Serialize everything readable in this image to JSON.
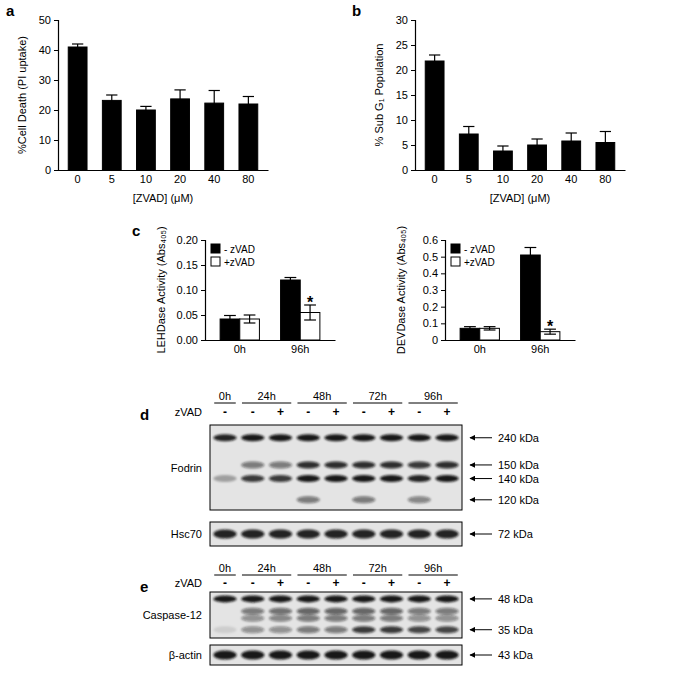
{
  "chart_data": [
    {
      "panel": "a",
      "type": "bar",
      "categories": [
        "0",
        "5",
        "10",
        "20",
        "40",
        "80"
      ],
      "values": [
        41,
        23.2,
        20,
        23.7,
        22.3,
        22
      ],
      "errors": [
        1,
        1.8,
        1.2,
        3,
        4.2,
        2.5
      ],
      "color": "#000000",
      "x_label": "[ZVAD] (μM)",
      "y_label": "%Cell Death (PI uptake)",
      "ylim": [
        0,
        50
      ],
      "yticks": [
        0,
        10,
        20,
        30,
        40,
        50
      ]
    },
    {
      "panel": "b",
      "type": "bar",
      "categories": [
        "0",
        "5",
        "10",
        "20",
        "40",
        "80"
      ],
      "values": [
        21.8,
        7.2,
        3.8,
        5,
        5.8,
        5.5
      ],
      "errors": [
        1.2,
        1.5,
        1,
        1.2,
        1.6,
        2.2
      ],
      "color": "#000000",
      "x_label": "[ZVAD] (μM)",
      "y_label": "% Sub G₁ Population",
      "ylim": [
        0,
        30
      ],
      "yticks": [
        0,
        5,
        10,
        15,
        20,
        25,
        30
      ]
    },
    {
      "panel": "c",
      "type": "bar",
      "categories": [
        "0h",
        "96h"
      ],
      "series": [
        {
          "name": "- zVAD",
          "color": "#000000",
          "values": [
            0.042,
            0.12
          ],
          "errors": [
            0.007,
            0.005
          ]
        },
        {
          "name": "+zVAD",
          "color": "#ffffff",
          "values": [
            0.042,
            0.055
          ],
          "errors": [
            0.008,
            0.015
          ]
        }
      ],
      "y_label": "LEHDase Activity (Abs₄₀₅)",
      "ylim": [
        0,
        0.2
      ],
      "yticks": [
        {
          "value": 0,
          "label": "0.00"
        },
        {
          "value": 0.05,
          "label": "0.05"
        },
        {
          "value": 0.1,
          "label": "0.10"
        },
        {
          "value": 0.15,
          "label": "0.15"
        },
        {
          "value": 0.2,
          "label": "0.20"
        }
      ],
      "legend": "upper left",
      "annotations": [
        {
          "text": "*",
          "category": "96h",
          "series": "+zVAD"
        }
      ]
    },
    {
      "type": "bar",
      "categories": [
        "0h",
        "96h"
      ],
      "series": [
        {
          "name": "- zVAD",
          "color": "#000000",
          "values": [
            0.07,
            0.51
          ],
          "errors": [
            0.01,
            0.045
          ]
        },
        {
          "name": "+zVAD",
          "color": "#ffffff",
          "values": [
            0.07,
            0.05
          ],
          "errors": [
            0.01,
            0.015
          ]
        }
      ],
      "y_label": "DEVDase Activity (Abs₄₀₅)",
      "ylim": [
        0,
        0.6
      ],
      "yticks": [
        0,
        0.1,
        0.2,
        0.3,
        0.4,
        0.5,
        0.6
      ],
      "legend": "upper left",
      "annotations": [
        {
          "text": "*",
          "category": "96h",
          "series": "+zVAD"
        }
      ]
    }
  ],
  "blots": [
    {
      "panel": "d",
      "treatment_label": "zVAD",
      "groups": [
        {
          "time": "0h",
          "treatments": [
            "-"
          ]
        },
        {
          "time": "24h",
          "treatments": [
            "-",
            "+"
          ]
        },
        {
          "time": "48h",
          "treatments": [
            "-",
            "+"
          ]
        },
        {
          "time": "72h",
          "treatments": [
            "-",
            "+"
          ]
        },
        {
          "time": "96h",
          "treatments": [
            "-",
            "+"
          ]
        }
      ],
      "strips": [
        {
          "name": "Fodrin",
          "bands": [
            {
              "label": "240 kDa",
              "intensity": [
                0.9,
                0.95,
                0.95,
                0.95,
                0.95,
                0.95,
                0.95,
                0.95,
                0.95
              ]
            },
            {
              "label": "150 kDa",
              "intensity": [
                0,
                0.5,
                0.5,
                0.85,
                0.85,
                0.85,
                0.85,
                0.8,
                0.85
              ]
            },
            {
              "label": "140 kDa",
              "intensity": [
                0.3,
                0.8,
                0.8,
                0.95,
                0.95,
                0.95,
                0.95,
                0.9,
                0.95
              ]
            },
            {
              "label": "120 kDa",
              "intensity": [
                0,
                0,
                0,
                0.5,
                0,
                0.5,
                0,
                0.45,
                0
              ]
            }
          ]
        },
        {
          "name": "Hsc70",
          "bands": [
            {
              "label": "72 kDa",
              "intensity": [
                0.9,
                0.9,
                0.9,
                0.9,
                0.9,
                0.9,
                0.9,
                0.9,
                0.9
              ]
            }
          ]
        }
      ]
    },
    {
      "panel": "e",
      "treatment_label": "zVAD",
      "groups": [
        {
          "time": "0h",
          "treatments": [
            "-"
          ]
        },
        {
          "time": "24h",
          "treatments": [
            "-",
            "+"
          ]
        },
        {
          "time": "48h",
          "treatments": [
            "-",
            "+"
          ]
        },
        {
          "time": "72h",
          "treatments": [
            "-",
            "+"
          ]
        },
        {
          "time": "96h",
          "treatments": [
            "-",
            "+"
          ]
        }
      ],
      "strips": [
        {
          "name": "Caspase-12",
          "bands": [
            {
              "label": "48 kDa",
              "intensity": [
                0.95,
                0.95,
                0.95,
                0.95,
                0.95,
                0.95,
                0.95,
                0.95,
                0.95
              ]
            },
            {
              "label": null,
              "intensity": [
                0,
                0.5,
                0.55,
                0.6,
                0.6,
                0.6,
                0.6,
                0.5,
                0.5
              ]
            },
            {
              "label": null,
              "intensity": [
                0,
                0.4,
                0.45,
                0.5,
                0.5,
                0.5,
                0.5,
                0.4,
                0.4
              ]
            },
            {
              "label": "35 kDa",
              "intensity": [
                0.1,
                0.4,
                0.4,
                0.5,
                0.5,
                0.8,
                0.8,
                0.75,
                0.75
              ]
            }
          ]
        },
        {
          "name": "β-actin",
          "bands": [
            {
              "label": "43 kDa",
              "intensity": [
                0.95,
                0.95,
                0.95,
                0.95,
                0.95,
                0.95,
                0.95,
                0.95,
                0.95
              ]
            }
          ]
        }
      ]
    }
  ]
}
